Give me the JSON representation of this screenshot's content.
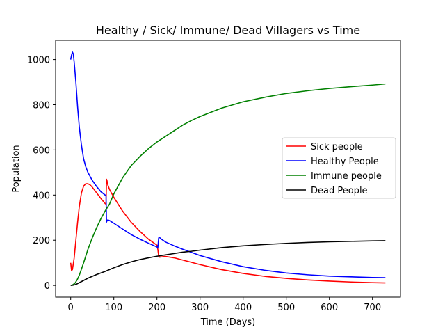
{
  "chart_data": {
    "type": "line",
    "title": "Healthy / Sick/ Immune/ Dead Villagers vs Time",
    "xlabel": "Time (Days)",
    "ylabel": "Population",
    "xlim": [
      -35,
      765
    ],
    "ylim": [
      -52,
      1085
    ],
    "xticks": [
      0,
      100,
      200,
      300,
      400,
      500,
      600,
      700
    ],
    "yticks": [
      0,
      200,
      400,
      600,
      800,
      1000
    ],
    "grid": false,
    "legend_position": "center-right",
    "series": [
      {
        "name": " Sick people",
        "color": "#ff0000",
        "points": [
          [
            0,
            100
          ],
          [
            2,
            65
          ],
          [
            4,
            70
          ],
          [
            8,
            120
          ],
          [
            12,
            200
          ],
          [
            16,
            280
          ],
          [
            20,
            350
          ],
          [
            25,
            410
          ],
          [
            30,
            440
          ],
          [
            35,
            450
          ],
          [
            40,
            450
          ],
          [
            45,
            445
          ],
          [
            50,
            435
          ],
          [
            60,
            410
          ],
          [
            70,
            385
          ],
          [
            80,
            362
          ],
          [
            82,
            360
          ],
          [
            83,
            470
          ],
          [
            84,
            465
          ],
          [
            86,
            445
          ],
          [
            90,
            425
          ],
          [
            100,
            390
          ],
          [
            120,
            330
          ],
          [
            140,
            280
          ],
          [
            160,
            240
          ],
          [
            180,
            205
          ],
          [
            200,
            178
          ],
          [
            202,
            160
          ],
          [
            204,
            130
          ],
          [
            206,
            125
          ],
          [
            220,
            128
          ],
          [
            240,
            122
          ],
          [
            260,
            112
          ],
          [
            300,
            92
          ],
          [
            350,
            70
          ],
          [
            400,
            53
          ],
          [
            450,
            40
          ],
          [
            500,
            31
          ],
          [
            550,
            24
          ],
          [
            600,
            19
          ],
          [
            650,
            15
          ],
          [
            700,
            12
          ],
          [
            730,
            11
          ]
        ]
      },
      {
        "name": " Healthy People",
        "color": "#0000ff",
        "points": [
          [
            0,
            1000
          ],
          [
            2,
            1020
          ],
          [
            4,
            1033
          ],
          [
            6,
            1025
          ],
          [
            8,
            990
          ],
          [
            12,
            900
          ],
          [
            16,
            790
          ],
          [
            20,
            700
          ],
          [
            25,
            620
          ],
          [
            30,
            560
          ],
          [
            35,
            525
          ],
          [
            40,
            500
          ],
          [
            50,
            465
          ],
          [
            60,
            438
          ],
          [
            70,
            415
          ],
          [
            80,
            400
          ],
          [
            82,
            395
          ],
          [
            83,
            280
          ],
          [
            84,
            285
          ],
          [
            86,
            290
          ],
          [
            90,
            287
          ],
          [
            100,
            275
          ],
          [
            120,
            250
          ],
          [
            140,
            225
          ],
          [
            160,
            205
          ],
          [
            180,
            187
          ],
          [
            200,
            170
          ],
          [
            202,
            165
          ],
          [
            204,
            210
          ],
          [
            206,
            212
          ],
          [
            210,
            205
          ],
          [
            220,
            192
          ],
          [
            240,
            175
          ],
          [
            260,
            160
          ],
          [
            300,
            132
          ],
          [
            350,
            105
          ],
          [
            400,
            83
          ],
          [
            450,
            67
          ],
          [
            500,
            55
          ],
          [
            550,
            47
          ],
          [
            600,
            41
          ],
          [
            650,
            38
          ],
          [
            700,
            35
          ],
          [
            730,
            34
          ]
        ]
      },
      {
        "name": " Immune people",
        "color": "#008000",
        "points": [
          [
            0,
            0
          ],
          [
            5,
            3
          ],
          [
            10,
            10
          ],
          [
            15,
            25
          ],
          [
            20,
            45
          ],
          [
            30,
            100
          ],
          [
            40,
            160
          ],
          [
            50,
            210
          ],
          [
            60,
            255
          ],
          [
            70,
            295
          ],
          [
            80,
            330
          ],
          [
            90,
            360
          ],
          [
            100,
            405
          ],
          [
            120,
            475
          ],
          [
            140,
            530
          ],
          [
            160,
            570
          ],
          [
            180,
            605
          ],
          [
            200,
            635
          ],
          [
            220,
            660
          ],
          [
            240,
            685
          ],
          [
            260,
            710
          ],
          [
            280,
            730
          ],
          [
            300,
            748
          ],
          [
            350,
            785
          ],
          [
            400,
            813
          ],
          [
            450,
            833
          ],
          [
            500,
            850
          ],
          [
            550,
            862
          ],
          [
            600,
            872
          ],
          [
            650,
            880
          ],
          [
            700,
            887
          ],
          [
            730,
            892
          ]
        ]
      },
      {
        "name": " Dead People",
        "color": "#000000",
        "points": [
          [
            0,
            0
          ],
          [
            5,
            1
          ],
          [
            10,
            3
          ],
          [
            15,
            7
          ],
          [
            20,
            12
          ],
          [
            30,
            22
          ],
          [
            40,
            32
          ],
          [
            50,
            40
          ],
          [
            60,
            48
          ],
          [
            70,
            55
          ],
          [
            80,
            62
          ],
          [
            90,
            70
          ],
          [
            100,
            78
          ],
          [
            120,
            92
          ],
          [
            140,
            104
          ],
          [
            160,
            114
          ],
          [
            180,
            122
          ],
          [
            200,
            129
          ],
          [
            220,
            135
          ],
          [
            240,
            141
          ],
          [
            260,
            147
          ],
          [
            280,
            151
          ],
          [
            300,
            156
          ],
          [
            350,
            167
          ],
          [
            400,
            175
          ],
          [
            450,
            181
          ],
          [
            500,
            186
          ],
          [
            550,
            190
          ],
          [
            600,
            193
          ],
          [
            650,
            195
          ],
          [
            700,
            197
          ],
          [
            730,
            198
          ]
        ]
      }
    ]
  }
}
